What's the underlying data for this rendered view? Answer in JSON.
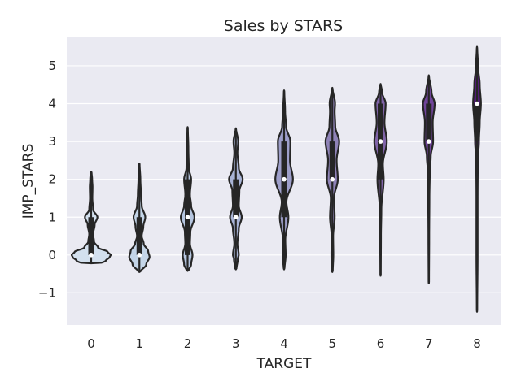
{
  "chart_data": {
    "type": "violin",
    "title": "Sales by STARS",
    "xlabel": "TARGET",
    "ylabel": "IMP_STARS",
    "categories": [
      "0",
      "1",
      "2",
      "3",
      "4",
      "5",
      "6",
      "7",
      "8"
    ],
    "ylim": [
      -1.85,
      5.75
    ],
    "yticks": [
      -1,
      0,
      1,
      2,
      3,
      4,
      5
    ],
    "ytick_labels": [
      "−1",
      "0",
      "1",
      "2",
      "3",
      "4",
      "5"
    ],
    "grid": true,
    "legend": "none",
    "background_color": "#eaeaf2",
    "violins": [
      {
        "category": "0",
        "min": -0.22,
        "max": 2.2,
        "median": 0,
        "q1": 0,
        "q3": 1,
        "color": "#d3e0ee",
        "profile": [
          [
            -0.22,
            0.5
          ],
          [
            -0.15,
            0.75
          ],
          [
            -0.05,
            0.95
          ],
          [
            0,
            1.0
          ],
          [
            0.08,
            0.85
          ],
          [
            0.2,
            0.35
          ],
          [
            0.35,
            0.15
          ],
          [
            0.55,
            0.1
          ],
          [
            0.8,
            0.18
          ],
          [
            1.0,
            0.32
          ],
          [
            1.2,
            0.1
          ],
          [
            1.5,
            0.06
          ],
          [
            1.8,
            0.07
          ],
          [
            2.0,
            0.05
          ],
          [
            2.2,
            0.02
          ]
        ]
      },
      {
        "category": "1",
        "min": -0.45,
        "max": 2.42,
        "median": 0,
        "q1": 0,
        "q3": 1,
        "color": "#c4d5e8",
        "profile": [
          [
            -0.45,
            0.05
          ],
          [
            -0.25,
            0.35
          ],
          [
            -0.05,
            0.52
          ],
          [
            0.1,
            0.45
          ],
          [
            0.3,
            0.22
          ],
          [
            0.5,
            0.12
          ],
          [
            0.75,
            0.2
          ],
          [
            1.0,
            0.3
          ],
          [
            1.3,
            0.12
          ],
          [
            1.6,
            0.08
          ],
          [
            2.0,
            0.05
          ],
          [
            2.42,
            0.01
          ]
        ]
      },
      {
        "category": "2",
        "min": -0.42,
        "max": 3.38,
        "median": 1,
        "q1": 0,
        "q3": 2,
        "color": "#b6c6e0",
        "profile": [
          [
            -0.42,
            0.05
          ],
          [
            -0.25,
            0.18
          ],
          [
            0,
            0.25
          ],
          [
            0.3,
            0.12
          ],
          [
            0.6,
            0.14
          ],
          [
            1.0,
            0.35
          ],
          [
            1.3,
            0.18
          ],
          [
            1.6,
            0.12
          ],
          [
            2.0,
            0.18
          ],
          [
            2.3,
            0.06
          ],
          [
            2.8,
            0.04
          ],
          [
            3.38,
            0.01
          ]
        ]
      },
      {
        "category": "3",
        "min": -0.38,
        "max": 3.35,
        "median": 1,
        "q1": 1,
        "q3": 2,
        "color": "#a9b4d6",
        "profile": [
          [
            -0.38,
            0.03
          ],
          [
            -0.1,
            0.1
          ],
          [
            0,
            0.15
          ],
          [
            0.3,
            0.08
          ],
          [
            0.7,
            0.15
          ],
          [
            1.0,
            0.3
          ],
          [
            1.3,
            0.15
          ],
          [
            1.7,
            0.18
          ],
          [
            2.0,
            0.35
          ],
          [
            2.3,
            0.15
          ],
          [
            2.7,
            0.08
          ],
          [
            3.0,
            0.12
          ],
          [
            3.35,
            0.01
          ]
        ]
      },
      {
        "category": "4",
        "min": -0.38,
        "max": 4.35,
        "median": 2,
        "q1": 1,
        "q3": 3,
        "color": "#9e9fca",
        "profile": [
          [
            -0.38,
            0.02
          ],
          [
            0,
            0.08
          ],
          [
            0.4,
            0.06
          ],
          [
            1.0,
            0.22
          ],
          [
            1.4,
            0.12
          ],
          [
            2.0,
            0.45
          ],
          [
            2.5,
            0.3
          ],
          [
            3.0,
            0.32
          ],
          [
            3.4,
            0.1
          ],
          [
            3.8,
            0.05
          ],
          [
            4.35,
            0.01
          ]
        ]
      },
      {
        "category": "5",
        "min": -0.45,
        "max": 4.42,
        "median": 2,
        "q1": 2,
        "q3": 3,
        "color": "#8f83b7",
        "profile": [
          [
            -0.45,
            0.02
          ],
          [
            0,
            0.05
          ],
          [
            0.5,
            0.04
          ],
          [
            1.0,
            0.12
          ],
          [
            1.5,
            0.08
          ],
          [
            2.0,
            0.28
          ],
          [
            2.5,
            0.22
          ],
          [
            3.0,
            0.35
          ],
          [
            3.4,
            0.15
          ],
          [
            3.8,
            0.12
          ],
          [
            4.0,
            0.14
          ],
          [
            4.42,
            0.01
          ]
        ]
      },
      {
        "category": "6",
        "min": -0.55,
        "max": 4.52,
        "median": 3,
        "q1": 2,
        "q3": 4,
        "color": "#8064a8",
        "profile": [
          [
            -0.55,
            0.01
          ],
          [
            0.5,
            0.02
          ],
          [
            1.2,
            0.04
          ],
          [
            2.0,
            0.16
          ],
          [
            2.4,
            0.12
          ],
          [
            3.0,
            0.32
          ],
          [
            3.5,
            0.2
          ],
          [
            4.0,
            0.26
          ],
          [
            4.3,
            0.08
          ],
          [
            4.52,
            0.01
          ]
        ]
      },
      {
        "category": "7",
        "min": -0.75,
        "max": 4.75,
        "median": 3,
        "q1": 3,
        "q3": 4,
        "color": "#70449a",
        "profile": [
          [
            -0.75,
            0.01
          ],
          [
            0.5,
            0.02
          ],
          [
            1.5,
            0.03
          ],
          [
            2.2,
            0.05
          ],
          [
            2.6,
            0.1
          ],
          [
            3.0,
            0.22
          ],
          [
            3.5,
            0.2
          ],
          [
            4.0,
            0.3
          ],
          [
            4.3,
            0.14
          ],
          [
            4.75,
            0.01
          ]
        ]
      },
      {
        "category": "8",
        "min": -1.5,
        "max": 5.5,
        "median": 4,
        "q1": 3,
        "q3": 4,
        "color": "#591c82",
        "profile": [
          [
            -1.5,
            0.01
          ],
          [
            0,
            0.03
          ],
          [
            1.5,
            0.03
          ],
          [
            2.5,
            0.04
          ],
          [
            3.0,
            0.1
          ],
          [
            3.5,
            0.14
          ],
          [
            4.0,
            0.2
          ],
          [
            4.5,
            0.14
          ],
          [
            5.0,
            0.05
          ],
          [
            5.5,
            0.01
          ]
        ]
      }
    ]
  }
}
